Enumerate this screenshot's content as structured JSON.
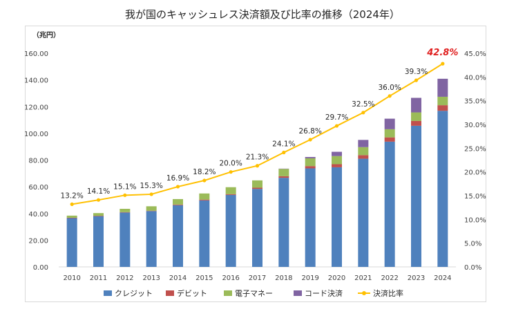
{
  "title": "我が国のキャッシュレス決済額及び比率の推移（2024年）",
  "chart_data": {
    "type": "bar",
    "stacked": true,
    "title": "我が国のキャッシュレス決済額及び比率の推移（2024年）",
    "y_unit": "（兆円）",
    "categories": [
      "2010",
      "2011",
      "2012",
      "2013",
      "2014",
      "2015",
      "2016",
      "2017",
      "2018",
      "2019",
      "2020",
      "2021",
      "2022",
      "2023",
      "2024"
    ],
    "ylim": [
      0,
      160
    ],
    "y_ticks": [
      "0.00",
      "20.00",
      "40.00",
      "60.00",
      "80.00",
      "100.00",
      "120.00",
      "140.00",
      "160.00"
    ],
    "y2lim": [
      0,
      45
    ],
    "y2_ticks": [
      "0.0%",
      "5.0%",
      "10.0%",
      "15.0%",
      "20.0%",
      "25.0%",
      "30.0%",
      "35.0%",
      "40.0%",
      "45.0%"
    ],
    "series": [
      {
        "name": "クレジット",
        "color": "#4f81bd",
        "values": [
          36.5,
          38.0,
          40.7,
          41.8,
          46.2,
          49.8,
          53.9,
          58.4,
          66.7,
          73.8,
          74.6,
          81.0,
          93.8,
          105.7,
          116.9
        ]
      },
      {
        "name": "デビット",
        "color": "#c0504d",
        "values": [
          0.3,
          0.3,
          0.3,
          0.3,
          0.5,
          0.6,
          0.6,
          0.9,
          1.2,
          1.7,
          2.3,
          2.7,
          3.2,
          3.6,
          4.2
        ]
      },
      {
        "name": "電子マネー",
        "color": "#9bbb59",
        "values": [
          1.6,
          2.0,
          2.5,
          3.3,
          4.1,
          4.6,
          5.2,
          5.5,
          5.5,
          5.8,
          6.1,
          6.0,
          6.1,
          6.4,
          6.3
        ]
      },
      {
        "name": "コード決済",
        "color": "#8064a2",
        "values": [
          0,
          0,
          0,
          0,
          0,
          0,
          0,
          0,
          0.2,
          1.0,
          3.2,
          5.4,
          7.9,
          10.9,
          13.5
        ]
      }
    ],
    "line_series": {
      "name": "決済比率",
      "color": "#ffc000",
      "values": [
        13.2,
        14.1,
        15.1,
        15.3,
        16.9,
        18.2,
        20.0,
        21.3,
        24.1,
        26.8,
        29.7,
        32.5,
        36.0,
        39.3,
        42.8
      ],
      "labels": [
        "13.2%",
        "14.1%",
        "15.1%",
        "15.3%",
        "16.9%",
        "18.2%",
        "20.0%",
        "21.3%",
        "24.1%",
        "26.8%",
        "29.7%",
        "32.5%",
        "36.0%",
        "39.3%",
        "42.8%"
      ]
    },
    "legend_position": "bottom"
  }
}
